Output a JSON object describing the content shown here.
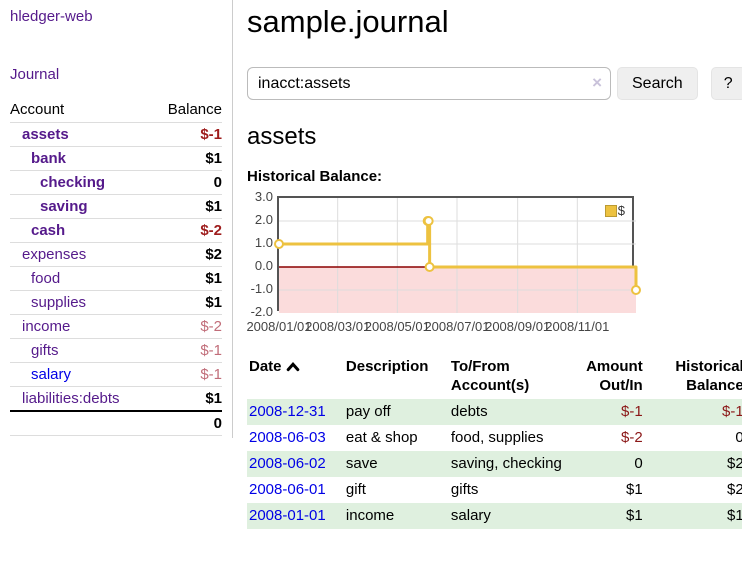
{
  "app": {
    "brand": "hledger-web"
  },
  "colors": {
    "link_purple": "#551a8b",
    "link_blue": "#0000e6",
    "negative_strong": "#9e1c1c",
    "negative_soft": "#c16d79",
    "negative_table": "#8b1717",
    "row_green": "#dff0df",
    "chart_line": "#edc240",
    "button_bg": "#efefef"
  },
  "sidebar": {
    "nav": {
      "journal": "Journal"
    },
    "header": {
      "account": "Account",
      "balance": "Balance"
    },
    "rows": [
      {
        "name": "assets",
        "balance": "$-1"
      },
      {
        "name": "bank",
        "balance": "$1"
      },
      {
        "name": "checking",
        "balance": "0"
      },
      {
        "name": "saving",
        "balance": "$1"
      },
      {
        "name": "cash",
        "balance": "$-2"
      },
      {
        "name": "expenses",
        "balance": "$2"
      },
      {
        "name": "food",
        "balance": "$1"
      },
      {
        "name": "supplies",
        "balance": "$1"
      },
      {
        "name": "income",
        "balance": "$-2"
      },
      {
        "name": "gifts",
        "balance": "$-1"
      },
      {
        "name": "salary",
        "balance": "$-1"
      },
      {
        "name": "liabilities:debts",
        "balance": "$1"
      }
    ],
    "total": "0"
  },
  "main": {
    "title": "sample.journal",
    "search": {
      "value": "inacct:assets",
      "clear_icon": "×",
      "search_button": "Search",
      "help_button": "?"
    },
    "account_heading": "assets",
    "register": {
      "headers": [
        {
          "l1": "Date",
          "l2": ""
        },
        {
          "l1": "Description",
          "l2": ""
        },
        {
          "l1": "To/From",
          "l2": "Account(s)"
        },
        {
          "l1": "Amount",
          "l2": "Out/In"
        },
        {
          "l1": "Historical",
          "l2": "Balance"
        }
      ],
      "rows": [
        {
          "date": "2008-12-31",
          "description": "pay off",
          "accounts": "debts",
          "amount": "$-1",
          "balance": "$-1"
        },
        {
          "date": "2008-06-03",
          "description": "eat & shop",
          "accounts": "food, supplies",
          "amount": "$-2",
          "balance": "0"
        },
        {
          "date": "2008-06-02",
          "description": "save",
          "accounts": "saving, checking",
          "amount": "0",
          "balance": "$2"
        },
        {
          "date": "2008-06-01",
          "description": "gift",
          "accounts": "gifts",
          "amount": "$1",
          "balance": "$2"
        },
        {
          "date": "2008-01-01",
          "description": "income",
          "accounts": "salary",
          "amount": "$1",
          "balance": "$1"
        }
      ]
    }
  },
  "chart_data": {
    "type": "line",
    "style": "step",
    "title": "Historical Balance:",
    "x_range": [
      "2008-01-01",
      "2008-12-31"
    ],
    "ylim": [
      -2,
      3
    ],
    "y_ticks": [
      3.0,
      2.0,
      1.0,
      0.0,
      -1.0,
      -2.0
    ],
    "x_ticks": [
      "2008/01/01",
      "2008/03/01",
      "2008/05/01",
      "2008/07/01",
      "2008/09/01",
      "2008/11/01"
    ],
    "grid": true,
    "legend_position": "top-right",
    "zero_line_color": "#8b0000",
    "negative_region_color": "#fbdcdc",
    "series": [
      {
        "name": "$",
        "color": "#edc240",
        "points": [
          {
            "date": "2008-01-01",
            "value": 1
          },
          {
            "date": "2008-06-01",
            "value": 2
          },
          {
            "date": "2008-06-02",
            "value": 2
          },
          {
            "date": "2008-06-03",
            "value": 0
          },
          {
            "date": "2008-12-31",
            "value": -1
          }
        ]
      }
    ]
  }
}
